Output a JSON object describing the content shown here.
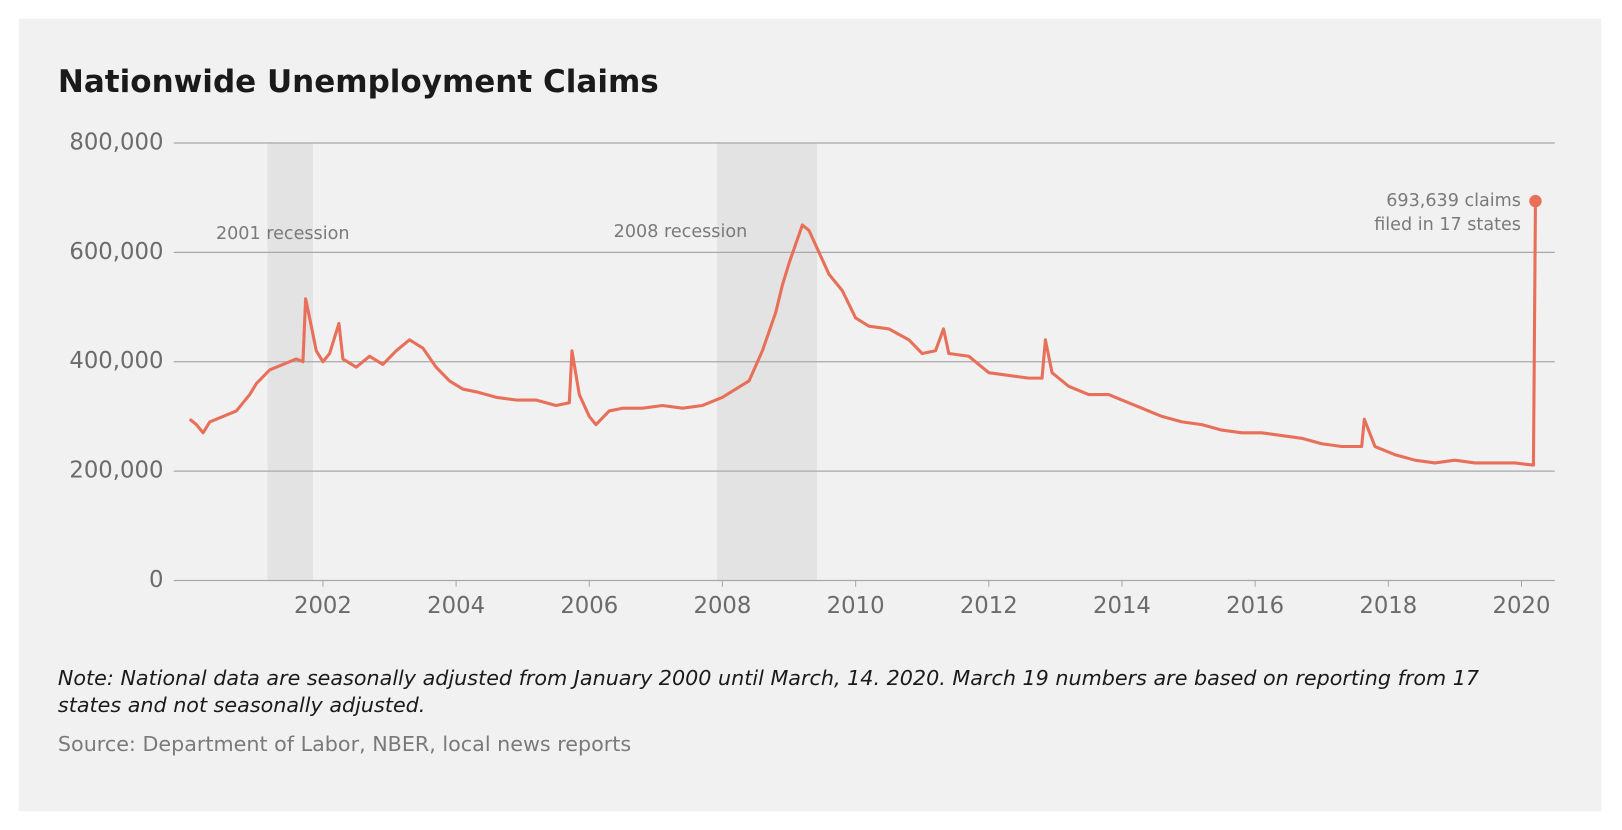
{
  "chart_data": {
    "type": "line",
    "title": "Nationwide Unemployment Claims",
    "note": "Note: National data are seasonally adjusted from January 2000 until March, 14. 2020. March 19 numbers are based on reporting from 17 states and not seasonally adjusted.",
    "source": "Source: Department of Labor, NBER, local news reports",
    "recessions": [
      {
        "label": "2001 recession",
        "start": 2001.17,
        "end": 2001.85
      },
      {
        "label": "2008 recession",
        "start": 2007.92,
        "end": 2009.42
      }
    ],
    "end_label": [
      "693,639 claims",
      "filed in 17 states"
    ],
    "grid": true,
    "xlim": [
      1999.76,
      2020.5
    ],
    "ylim": [
      0,
      800000
    ],
    "xticks": [
      2002,
      2004,
      2006,
      2008,
      2010,
      2012,
      2014,
      2016,
      2018,
      2020
    ],
    "yticks": [
      0,
      {
        "value": 200000,
        "label": "200,000"
      },
      {
        "value": 400000,
        "label": "400,000"
      },
      {
        "value": 600000,
        "label": "600,000"
      },
      {
        "value": 800000,
        "label": "800,000"
      }
    ],
    "x": [
      2000.0,
      2000.1,
      2000.2,
      2000.3,
      2000.5,
      2000.7,
      2000.9,
      2001.0,
      2001.2,
      2001.4,
      2001.6,
      2001.7,
      2001.74,
      2001.8,
      2001.9,
      2002.0,
      2002.1,
      2002.24,
      2002.3,
      2002.5,
      2002.7,
      2002.9,
      2003.1,
      2003.3,
      2003.5,
      2003.7,
      2003.9,
      2004.1,
      2004.3,
      2004.6,
      2004.9,
      2005.2,
      2005.5,
      2005.7,
      2005.74,
      2005.85,
      2006.0,
      2006.1,
      2006.3,
      2006.5,
      2006.8,
      2007.1,
      2007.4,
      2007.7,
      2008.0,
      2008.2,
      2008.4,
      2008.6,
      2008.8,
      2008.9,
      2009.0,
      2009.2,
      2009.3,
      2009.45,
      2009.6,
      2009.8,
      2010.0,
      2010.2,
      2010.5,
      2010.8,
      2011.0,
      2011.2,
      2011.32,
      2011.4,
      2011.7,
      2012.0,
      2012.3,
      2012.6,
      2012.8,
      2012.85,
      2012.95,
      2013.2,
      2013.5,
      2013.8,
      2014.0,
      2014.3,
      2014.6,
      2014.9,
      2015.2,
      2015.5,
      2015.8,
      2016.1,
      2016.4,
      2016.7,
      2017.0,
      2017.3,
      2017.6,
      2017.64,
      2017.8,
      2018.1,
      2018.4,
      2018.7,
      2019.0,
      2019.3,
      2019.6,
      2019.9,
      2020.1,
      2020.18,
      2020.21
    ],
    "series": [
      {
        "name": "Unemployment claims",
        "color": "#e8705a",
        "values": [
          295000,
          285000,
          270000,
          290000,
          300000,
          310000,
          340000,
          360000,
          385000,
          395000,
          405000,
          400000,
          515000,
          480000,
          420000,
          400000,
          415000,
          470000,
          405000,
          390000,
          410000,
          395000,
          420000,
          440000,
          425000,
          390000,
          365000,
          350000,
          345000,
          335000,
          330000,
          330000,
          320000,
          325000,
          420000,
          340000,
          300000,
          285000,
          310000,
          315000,
          315000,
          320000,
          315000,
          320000,
          335000,
          350000,
          365000,
          420000,
          490000,
          540000,
          580000,
          650000,
          640000,
          600000,
          560000,
          530000,
          480000,
          465000,
          460000,
          440000,
          415000,
          420000,
          460000,
          415000,
          410000,
          380000,
          375000,
          370000,
          370000,
          440000,
          380000,
          355000,
          340000,
          340000,
          330000,
          315000,
          300000,
          290000,
          285000,
          275000,
          270000,
          270000,
          265000,
          260000,
          250000,
          245000,
          245000,
          295000,
          245000,
          230000,
          220000,
          215000,
          220000,
          215000,
          215000,
          215000,
          212000,
          211000,
          693639
        ]
      }
    ]
  }
}
